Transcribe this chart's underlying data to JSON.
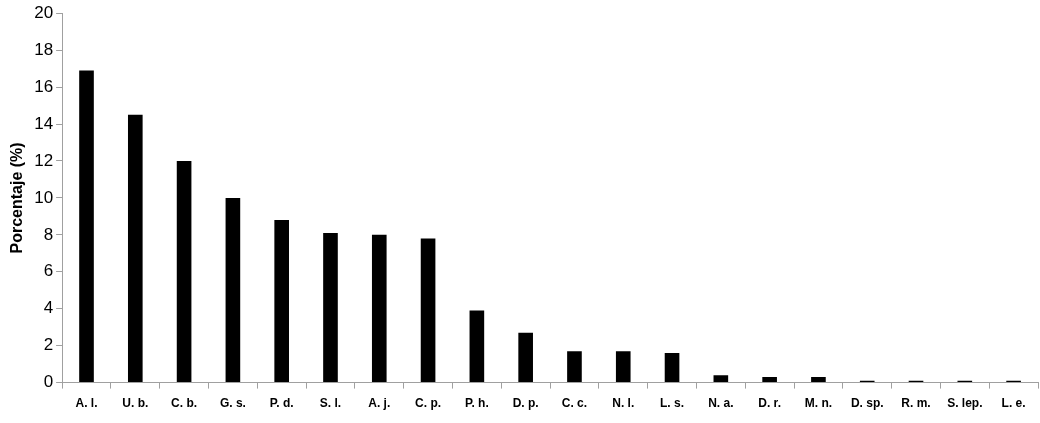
{
  "chart_data": {
    "type": "bar",
    "ylabel": "Porcentaje (%)",
    "categories": [
      "A. l.",
      "U. b.",
      "C. b.",
      "G. s.",
      "P. d.",
      "S. l.",
      "A. j.",
      "C. p.",
      "P. h.",
      "D. p.",
      "C. c.",
      "N. l.",
      "L. s.",
      "N. a.",
      "D. r.",
      "M. n.",
      "D. sp.",
      "R. m.",
      "S. lep.",
      "L. e."
    ],
    "values": [
      16.9,
      14.5,
      12.0,
      10.0,
      8.8,
      8.1,
      8.0,
      7.8,
      3.9,
      2.7,
      1.7,
      1.7,
      1.6,
      0.4,
      0.3,
      0.3,
      0.1,
      0.1,
      0.1,
      0.1
    ],
    "color": "#000000",
    "ylim": [
      0,
      20
    ],
    "yticks": [
      0,
      2,
      4,
      6,
      8,
      10,
      12,
      14,
      16,
      18,
      20
    ],
    "grid": false,
    "legend": false
  }
}
